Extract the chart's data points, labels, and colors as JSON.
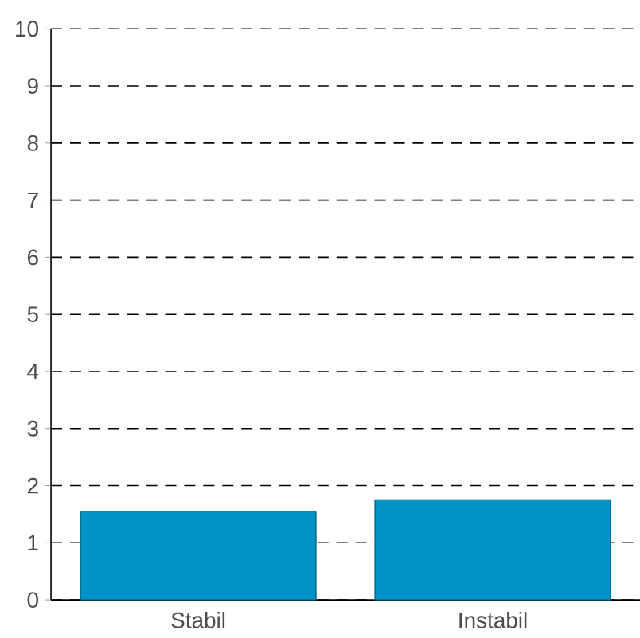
{
  "chart_data": {
    "type": "bar",
    "categories": [
      "Stabil",
      "Instabil"
    ],
    "values": [
      1.55,
      1.75
    ],
    "color": "#0093c6",
    "ylim": [
      0,
      10
    ],
    "yticks": [
      0,
      1,
      2,
      3,
      4,
      5,
      6,
      7,
      8,
      9,
      10
    ],
    "grid": "y"
  }
}
